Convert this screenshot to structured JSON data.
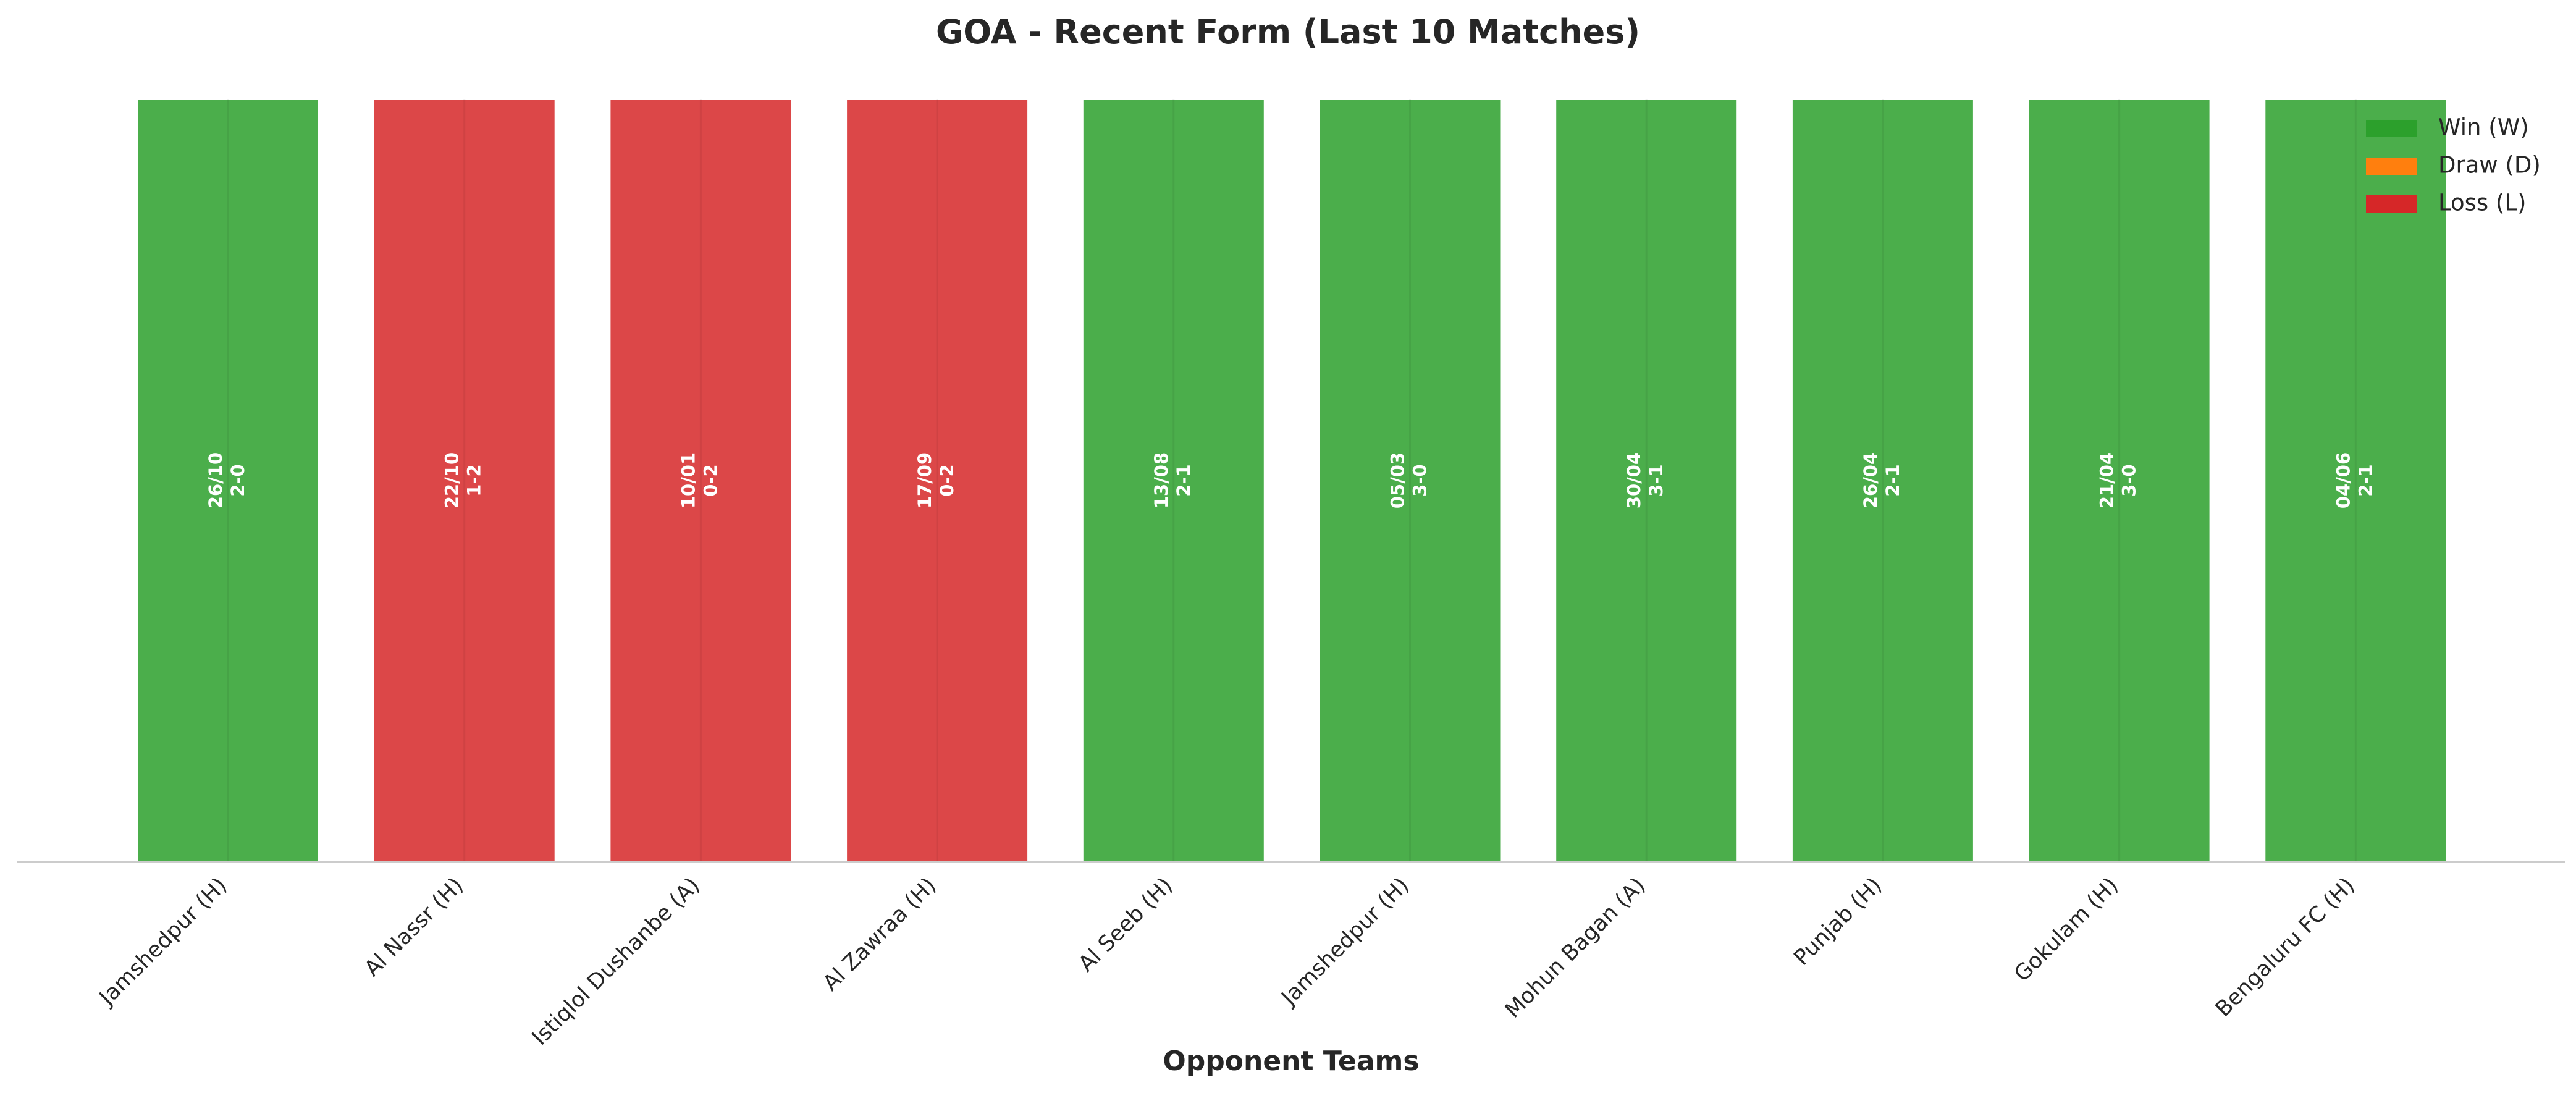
{
  "chart_data": {
    "type": "bar",
    "title": "GOA - Recent Form (Last 10 Matches)",
    "x_label": "Opponent Teams",
    "categories": [
      "Jamshedpur (H)",
      "Al Nassr (H)",
      "Istiqlol Dushanbe (A)",
      "Al Zawraa (H)",
      "Al Seeb (H)",
      "Jamshedpur (H)",
      "Mohun Bagan (A)",
      "Punjab (H)",
      "Gokulam (H)",
      "Bengaluru FC (H)"
    ],
    "values": [
      1,
      1,
      1,
      1,
      1,
      1,
      1,
      1,
      1,
      1
    ],
    "ylim": [
      0,
      1
    ],
    "dates": [
      "26/10",
      "22/10",
      "10/01",
      "17/09",
      "13/08",
      "05/03",
      "30/04",
      "26/04",
      "21/04",
      "04/06"
    ],
    "scores": [
      "2-0",
      "1-2",
      "0-2",
      "0-2",
      "2-1",
      "3-0",
      "3-1",
      "2-1",
      "3-0",
      "2-1"
    ],
    "colors": [
      "#2ca02c",
      "#d62728",
      "#d62728",
      "#d62728",
      "#2ca02c",
      "#2ca02c",
      "#2ca02c",
      "#2ca02c",
      "#2ca02c",
      "#2ca02c"
    ],
    "legend": {
      "position": "upper right",
      "items": [
        {
          "name": "Win (W)",
          "color": "#2ca02c"
        },
        {
          "name": "Draw (D)",
          "color": "#ff7f0e"
        },
        {
          "name": "Loss (L)",
          "color": "#d62728"
        }
      ]
    }
  }
}
